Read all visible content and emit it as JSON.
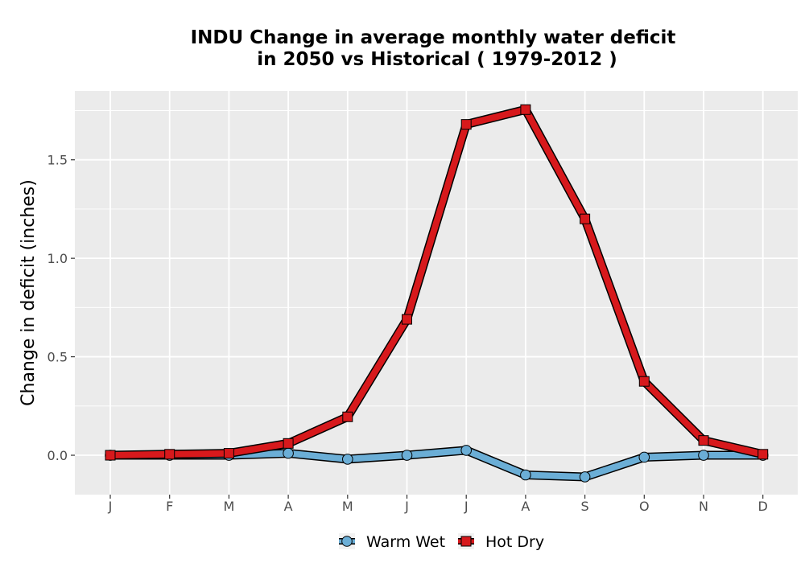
{
  "chart_data": {
    "type": "line",
    "title_line1": "INDU  Change in average monthly water deficit",
    "title_line2": "in 2050 vs Historical ( 1979-2012 )",
    "xlabel": "",
    "ylabel": "Change in deficit (inches)",
    "categories": [
      "J",
      "F",
      "M",
      "A",
      "M",
      "J",
      "J",
      "A",
      "S",
      "O",
      "N",
      "D"
    ],
    "ylim": [
      -0.2,
      1.85
    ],
    "yticks": [
      0.0,
      0.5,
      1.0,
      1.5
    ],
    "ytick_labels": [
      "0.0",
      "0.5",
      "1.0",
      "1.5"
    ],
    "grid": true,
    "legend_position": "bottom",
    "series": [
      {
        "name": "Warm Wet",
        "marker": "circle",
        "fill_color": "#6baed6",
        "values": [
          0.0,
          0.0,
          0.0,
          0.01,
          -0.02,
          0.0,
          0.025,
          -0.1,
          -0.11,
          -0.01,
          0.0,
          0.0
        ]
      },
      {
        "name": "Hot Dry",
        "marker": "square",
        "fill_color": "#d7191c",
        "values": [
          0.0,
          0.005,
          0.01,
          0.06,
          0.195,
          0.69,
          1.68,
          1.755,
          1.2,
          0.375,
          0.075,
          0.005
        ]
      }
    ]
  }
}
